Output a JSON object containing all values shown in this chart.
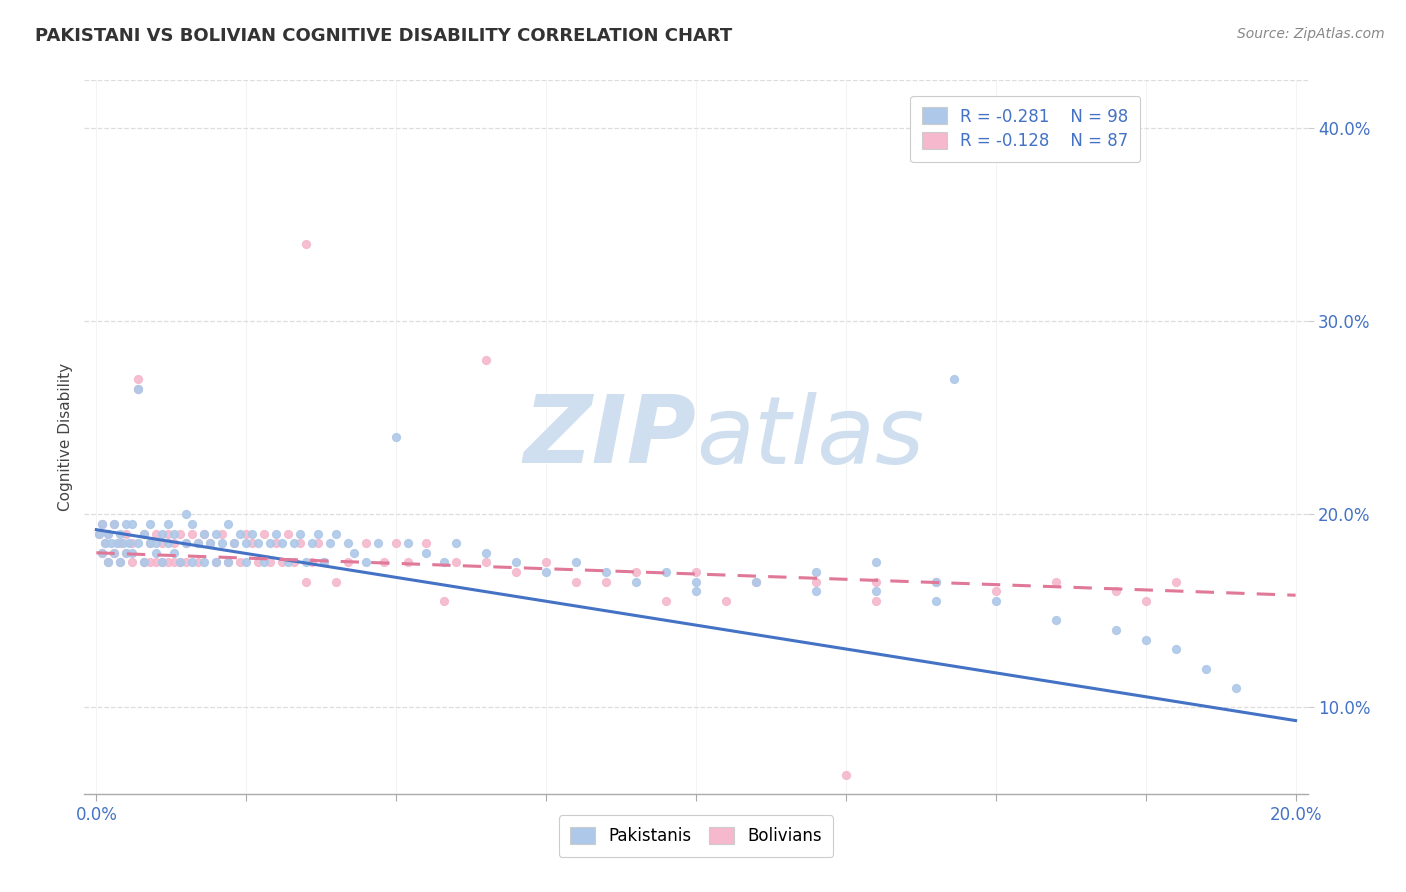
{
  "title": "PAKISTANI VS BOLIVIAN COGNITIVE DISABILITY CORRELATION CHART",
  "source": "Source: ZipAtlas.com",
  "ylabel": "Cognitive Disability",
  "xlim": [
    -0.002,
    0.202
  ],
  "ylim": [
    0.055,
    0.425
  ],
  "yticks": [
    0.1,
    0.2,
    0.3,
    0.4
  ],
  "ytick_labels": [
    "10.0%",
    "20.0%",
    "30.0%",
    "40.0%"
  ],
  "xticks": [
    0.0,
    0.025,
    0.05,
    0.075,
    0.1,
    0.125,
    0.15,
    0.175,
    0.2
  ],
  "pakistani_R": -0.281,
  "pakistani_N": 98,
  "bolivian_R": -0.128,
  "bolivian_N": 87,
  "blue_fill": "#adc8e8",
  "pink_fill": "#f5b8cc",
  "line_blue": "#4472c4",
  "line_pink": "#e07898",
  "watermark_color": "#d0dff0",
  "legend_text_color": "#4472c4",
  "tick_color": "#4472c4",
  "blue_line_y0": 0.192,
  "blue_line_y1": 0.093,
  "pink_line_y0": 0.18,
  "pink_line_y1": 0.158,
  "pakistani_x": [
    0.0005,
    0.001,
    0.001,
    0.0015,
    0.002,
    0.002,
    0.0025,
    0.003,
    0.003,
    0.0035,
    0.004,
    0.004,
    0.0045,
    0.005,
    0.005,
    0.0055,
    0.006,
    0.006,
    0.007,
    0.007,
    0.008,
    0.008,
    0.009,
    0.009,
    0.01,
    0.01,
    0.011,
    0.011,
    0.012,
    0.012,
    0.013,
    0.013,
    0.014,
    0.015,
    0.015,
    0.016,
    0.016,
    0.017,
    0.018,
    0.018,
    0.019,
    0.02,
    0.02,
    0.021,
    0.022,
    0.022,
    0.023,
    0.024,
    0.025,
    0.025,
    0.026,
    0.027,
    0.028,
    0.029,
    0.03,
    0.031,
    0.032,
    0.033,
    0.034,
    0.035,
    0.036,
    0.037,
    0.038,
    0.039,
    0.04,
    0.042,
    0.043,
    0.045,
    0.047,
    0.05,
    0.052,
    0.055,
    0.058,
    0.06,
    0.065,
    0.07,
    0.075,
    0.08,
    0.085,
    0.09,
    0.095,
    0.1,
    0.11,
    0.12,
    0.13,
    0.14,
    0.143,
    0.15,
    0.16,
    0.17,
    0.175,
    0.18,
    0.185,
    0.19,
    0.13,
    0.14,
    0.12,
    0.1
  ],
  "pakistani_y": [
    0.19,
    0.195,
    0.18,
    0.185,
    0.19,
    0.175,
    0.185,
    0.195,
    0.18,
    0.185,
    0.19,
    0.175,
    0.185,
    0.195,
    0.18,
    0.185,
    0.195,
    0.18,
    0.265,
    0.185,
    0.19,
    0.175,
    0.185,
    0.195,
    0.18,
    0.185,
    0.19,
    0.175,
    0.185,
    0.195,
    0.18,
    0.19,
    0.175,
    0.185,
    0.2,
    0.195,
    0.175,
    0.185,
    0.19,
    0.175,
    0.185,
    0.19,
    0.175,
    0.185,
    0.195,
    0.175,
    0.185,
    0.19,
    0.175,
    0.185,
    0.19,
    0.185,
    0.175,
    0.185,
    0.19,
    0.185,
    0.175,
    0.185,
    0.19,
    0.175,
    0.185,
    0.19,
    0.175,
    0.185,
    0.19,
    0.185,
    0.18,
    0.175,
    0.185,
    0.24,
    0.185,
    0.18,
    0.175,
    0.185,
    0.18,
    0.175,
    0.17,
    0.175,
    0.17,
    0.165,
    0.17,
    0.165,
    0.165,
    0.16,
    0.16,
    0.155,
    0.27,
    0.155,
    0.145,
    0.14,
    0.135,
    0.13,
    0.12,
    0.11,
    0.175,
    0.165,
    0.17,
    0.16
  ],
  "bolivian_x": [
    0.0005,
    0.001,
    0.001,
    0.0015,
    0.002,
    0.002,
    0.003,
    0.003,
    0.004,
    0.004,
    0.005,
    0.005,
    0.006,
    0.006,
    0.007,
    0.007,
    0.008,
    0.008,
    0.009,
    0.009,
    0.01,
    0.01,
    0.011,
    0.011,
    0.012,
    0.012,
    0.013,
    0.013,
    0.014,
    0.014,
    0.015,
    0.015,
    0.016,
    0.017,
    0.017,
    0.018,
    0.019,
    0.02,
    0.021,
    0.022,
    0.023,
    0.024,
    0.025,
    0.026,
    0.027,
    0.028,
    0.029,
    0.03,
    0.031,
    0.032,
    0.033,
    0.034,
    0.035,
    0.036,
    0.037,
    0.038,
    0.04,
    0.042,
    0.045,
    0.048,
    0.05,
    0.052,
    0.055,
    0.058,
    0.06,
    0.065,
    0.07,
    0.075,
    0.08,
    0.085,
    0.09,
    0.095,
    0.1,
    0.105,
    0.11,
    0.12,
    0.13,
    0.14,
    0.15,
    0.16,
    0.17,
    0.175,
    0.18,
    0.125,
    0.13,
    0.035,
    0.065
  ],
  "bolivian_y": [
    0.19,
    0.195,
    0.18,
    0.185,
    0.19,
    0.175,
    0.195,
    0.18,
    0.185,
    0.175,
    0.19,
    0.18,
    0.185,
    0.175,
    0.27,
    0.265,
    0.19,
    0.175,
    0.185,
    0.175,
    0.19,
    0.175,
    0.185,
    0.175,
    0.19,
    0.175,
    0.185,
    0.175,
    0.19,
    0.175,
    0.185,
    0.175,
    0.19,
    0.185,
    0.175,
    0.19,
    0.185,
    0.175,
    0.19,
    0.175,
    0.185,
    0.175,
    0.19,
    0.185,
    0.175,
    0.19,
    0.175,
    0.185,
    0.175,
    0.19,
    0.175,
    0.185,
    0.165,
    0.175,
    0.185,
    0.175,
    0.165,
    0.175,
    0.185,
    0.175,
    0.185,
    0.175,
    0.185,
    0.155,
    0.175,
    0.175,
    0.17,
    0.175,
    0.165,
    0.165,
    0.17,
    0.155,
    0.17,
    0.155,
    0.165,
    0.165,
    0.165,
    0.165,
    0.16,
    0.165,
    0.16,
    0.155,
    0.165,
    0.065,
    0.155,
    0.34,
    0.28
  ]
}
